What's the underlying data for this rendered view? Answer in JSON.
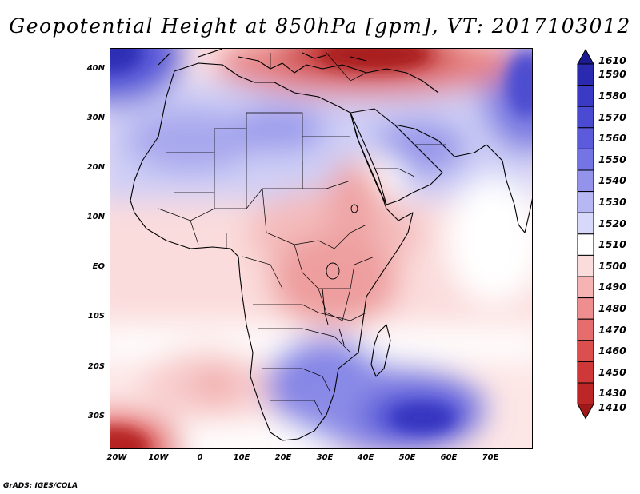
{
  "title": "Geopotential Height at 850hPa [gpm], VT: 2017103012",
  "credit": "GrADS: IGES/COLA",
  "y_axis": {
    "labels": [
      "40N",
      "30N",
      "20N",
      "10N",
      "EQ",
      "10S",
      "20S",
      "30S"
    ]
  },
  "x_axis": {
    "labels": [
      "20W",
      "10W",
      "0",
      "10E",
      "20E",
      "30E",
      "40E",
      "50E",
      "60E",
      "70E"
    ]
  },
  "colorbar": {
    "labels": [
      "1610",
      "1590",
      "1580",
      "1570",
      "1560",
      "1550",
      "1540",
      "1530",
      "1520",
      "1510",
      "1500",
      "1490",
      "1480",
      "1470",
      "1460",
      "1450",
      "1430",
      "1410"
    ],
    "colors": [
      "#1b1a8f",
      "#2a2ab0",
      "#3a3ac4",
      "#4a4ad2",
      "#5b5bdc",
      "#7474e4",
      "#9393ec",
      "#b7b7f3",
      "#d8d8fa",
      "#ffffff",
      "#fbdcdc",
      "#f5b3b3",
      "#ee8e8e",
      "#e56d6d",
      "#db4f4f",
      "#cf3838",
      "#bd2626",
      "#a01818"
    ]
  },
  "chart_data": {
    "type": "heatmap",
    "title": "Geopotential Height at 850hPa [gpm], VT: 2017103012",
    "variable": "Geopotential Height",
    "level": "850hPa",
    "units": "gpm",
    "valid_time": "2017103012",
    "lon_range": [
      -22,
      80
    ],
    "lat_range": [
      -37,
      45
    ],
    "contour_levels": [
      1410,
      1430,
      1450,
      1460,
      1470,
      1480,
      1490,
      1500,
      1510,
      1520,
      1530,
      1540,
      1550,
      1560,
      1570,
      1580,
      1590,
      1610
    ],
    "features": [
      {
        "region": "Eastern Mediterranean / Black Sea",
        "value_range": [
          1410,
          1450
        ]
      },
      {
        "region": "Southeast of South Africa (40-50E, 30S)",
        "value_range": [
          1570,
          1590
        ]
      },
      {
        "region": "Southwest corner (20W, 35S)",
        "value_range": [
          1430,
          1470
        ]
      },
      {
        "region": "Northwest corner (20W, 42N)",
        "value_range": [
          1570,
          1590
        ]
      },
      {
        "region": "Central / East Africa",
        "value_range": [
          1490,
          1500
        ]
      },
      {
        "region": "Sahara",
        "value_range": [
          1520,
          1550
        ]
      }
    ]
  }
}
